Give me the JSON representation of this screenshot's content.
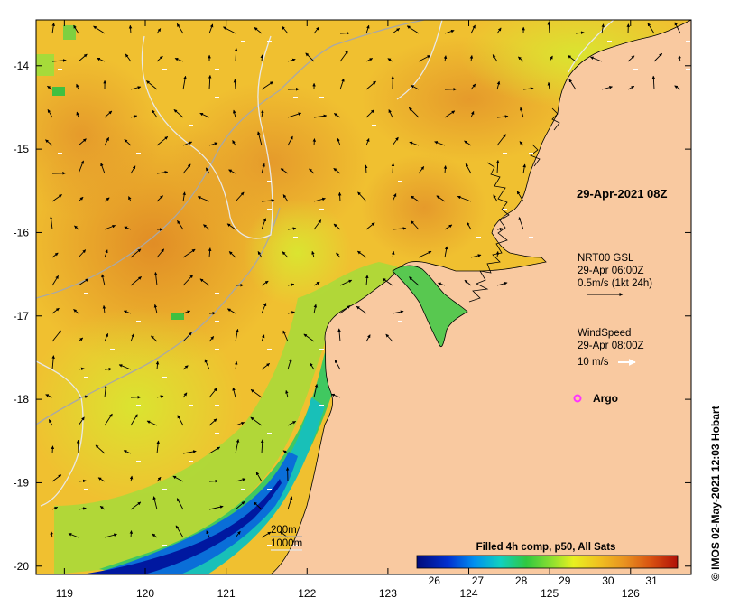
{
  "map": {
    "lon_ticks": [
      119,
      120,
      121,
      122,
      123,
      124,
      125,
      126
    ],
    "lat_ticks": [
      -14,
      -15,
      -16,
      -17,
      -18,
      -19,
      -20
    ],
    "lon_range": [
      118.65,
      126.75
    ],
    "lat_range": [
      -20.1,
      -13.45
    ]
  },
  "annotations": {
    "timestamp": "29-Apr-2021 08Z",
    "current_source": "NRT00 GSL",
    "current_time": "29-Apr 06:00Z",
    "current_scale": "0.5m/s (1kt 24h)",
    "wind_title": "WindSpeed",
    "wind_time": "29-Apr 08:00Z",
    "wind_scale": "10 m/s",
    "argo_label": "Argo",
    "contour_200": "200m",
    "contour_1000": "1000m"
  },
  "colorbar": {
    "title": "Filled 4h comp, p50, All Sats",
    "ticks": [
      26,
      27,
      28,
      29,
      30,
      31
    ],
    "range": [
      25.6,
      31.6
    ]
  },
  "credit": "© IMOS 02-May-2021 12:03 Hobart",
  "colors": {
    "land": "#f9c9a0",
    "argo": "#ff33ff",
    "ocean_warm": "#e39a2a",
    "ocean_mid": "#f0c030",
    "ocean_cool": "#a6db3a"
  }
}
